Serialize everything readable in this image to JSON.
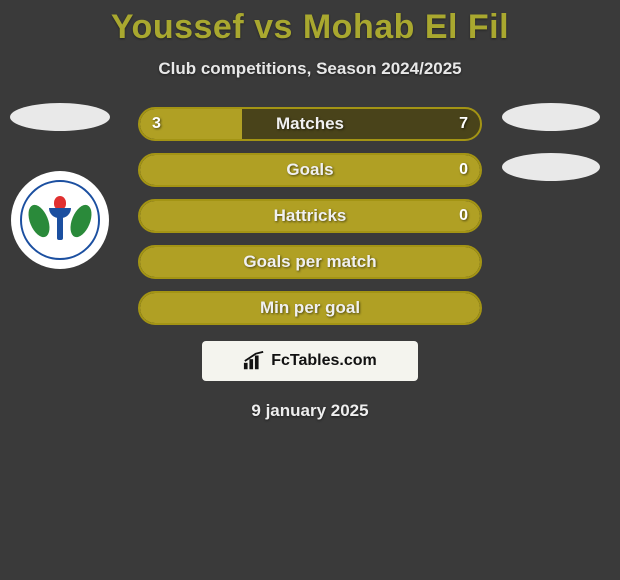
{
  "header": {
    "title": "Youssef vs Mohab El Fil",
    "subtitle": "Club competitions, Season 2024/2025",
    "title_color": "#a9a82f"
  },
  "stats": {
    "background_color": "#3a3a3a",
    "bar_border_color": "#a39414",
    "bar_empty_color": "#49431a",
    "bar_fill_color": "#b0a024",
    "rows": [
      {
        "label": "Matches",
        "left": "3",
        "right": "7",
        "left_pct": 30,
        "show_vals": true
      },
      {
        "label": "Goals",
        "left": "",
        "right": "0",
        "left_pct": 100,
        "show_vals": true,
        "full": true
      },
      {
        "label": "Hattricks",
        "left": "",
        "right": "0",
        "left_pct": 100,
        "show_vals": true,
        "full": true
      },
      {
        "label": "Goals per match",
        "left": "",
        "right": "",
        "left_pct": 100,
        "show_vals": false,
        "full": true
      },
      {
        "label": "Min per goal",
        "left": "",
        "right": "",
        "left_pct": 100,
        "show_vals": false,
        "full": true
      }
    ]
  },
  "left_player": {
    "placeholder": true,
    "club_badge": {
      "bg_color": "#ffffff",
      "ring_color": "#1b4fa0",
      "leaf_color": "#2a8a3a",
      "flame_color": "#e03030"
    }
  },
  "right_player": {
    "placeholders": 2
  },
  "footer": {
    "brand_left": "Fc",
    "brand_right": "Tables.com",
    "brand_bg": "#f4f4ee",
    "date": "9 january 2025"
  }
}
